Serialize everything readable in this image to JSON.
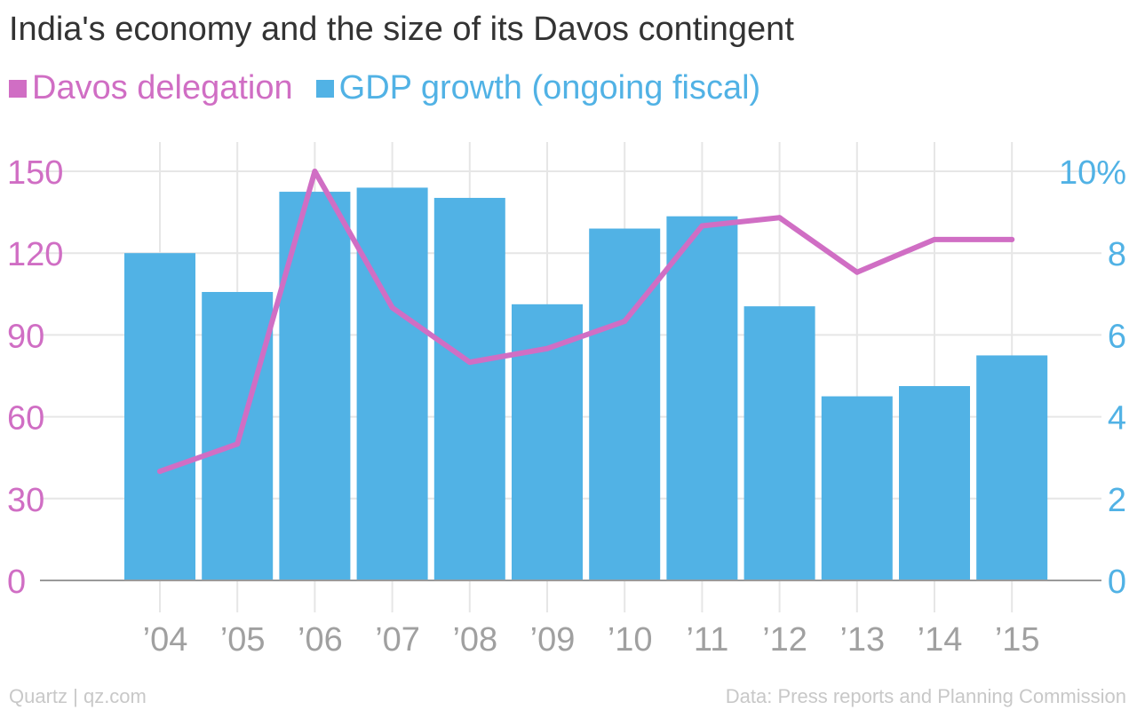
{
  "colors": {
    "delegation": "#d06ec4",
    "gdp": "#51b2e5",
    "grid": "#e6e6e6",
    "axis_line": "#9a9a9a",
    "xtick": "#a0a0a0"
  },
  "chart_data": {
    "type": "bar",
    "title": "India's economy and the size of its Davos contingent",
    "categories": [
      "’04",
      "’05",
      "’06",
      "’07",
      "’08",
      "’09",
      "’10",
      "’11",
      "’12",
      "’13",
      "’14",
      "’15"
    ],
    "series": [
      {
        "name": "Davos delegation",
        "type": "line",
        "axis": "left",
        "values": [
          40,
          50,
          150,
          100,
          80,
          85,
          95,
          130,
          133,
          113,
          125,
          125
        ]
      },
      {
        "name": "GDP growth (ongoing fiscal)",
        "type": "bar",
        "axis": "right",
        "values": [
          8.0,
          7.05,
          9.5,
          9.6,
          9.35,
          6.75,
          8.6,
          8.9,
          6.7,
          4.5,
          4.75,
          5.5
        ]
      }
    ],
    "left_axis": {
      "ylim": [
        0,
        150
      ],
      "ticks": [
        "0",
        "30",
        "60",
        "90",
        "120",
        "150"
      ],
      "tick_values": [
        0,
        30,
        60,
        90,
        120,
        150
      ]
    },
    "right_axis": {
      "ylim": [
        0,
        10
      ],
      "ticks": [
        "0",
        "2",
        "4",
        "6",
        "8",
        "10%"
      ],
      "tick_values": [
        0,
        2,
        4,
        6,
        8,
        10
      ]
    },
    "grid": true,
    "legend": "top-left"
  },
  "footer": {
    "source_left": "Quartz | qz.com",
    "source_right": "Data: Press reports and Planning Commission"
  }
}
